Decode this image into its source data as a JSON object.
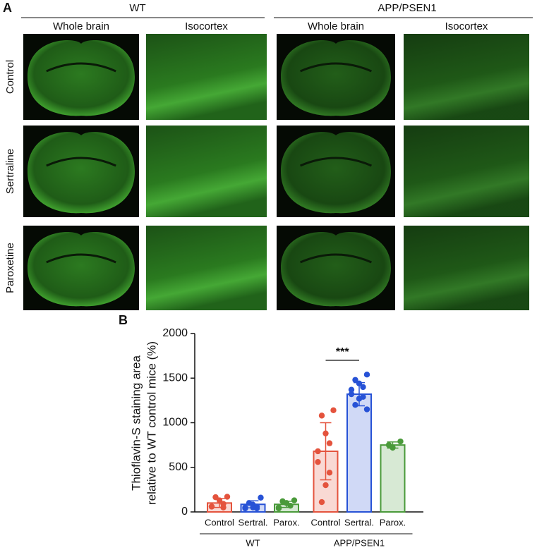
{
  "panel_a": {
    "label": "A",
    "groups": [
      "WT",
      "APP/PSEN1"
    ],
    "columns": [
      "Whole brain",
      "Isocortex",
      "Whole brain",
      "Isocortex"
    ],
    "rows": [
      "Control",
      "Sertraline",
      "Paroxetine"
    ]
  },
  "chart_data": {
    "type": "bar",
    "panel_label": "B",
    "ylabel": [
      "Thioflavin-S staining area",
      "relative to WT control mice (%)"
    ],
    "categories": [
      "Control",
      "Sertral.",
      "Parox.",
      "Control",
      "Sertral.",
      "Parox."
    ],
    "groups": [
      "WT",
      "APP/PSEN1"
    ],
    "values": [
      100,
      85,
      85,
      680,
      1320,
      750
    ],
    "errors": [
      50,
      40,
      35,
      320,
      130,
      35
    ],
    "colors": [
      "#e4533d",
      "#2752d6",
      "#4a9a3a",
      "#e4533d",
      "#2752d6",
      "#4a9a3a"
    ],
    "points": [
      [
        170,
        165,
        130,
        90,
        60,
        60,
        50
      ],
      [
        160,
        100,
        80,
        60,
        50,
        40,
        40,
        50
      ],
      [
        130,
        120,
        100,
        70,
        50,
        40
      ],
      [
        1140,
        1080,
        880,
        770,
        680,
        560,
        440,
        300,
        110
      ],
      [
        1540,
        1480,
        1440,
        1400,
        1370,
        1320,
        1290,
        1270,
        1200,
        1150
      ],
      [
        790,
        750,
        720
      ]
    ],
    "significance": "***",
    "ylim": [
      0,
      2000
    ],
    "yticks": [
      0,
      500,
      1000,
      1500,
      2000
    ]
  }
}
